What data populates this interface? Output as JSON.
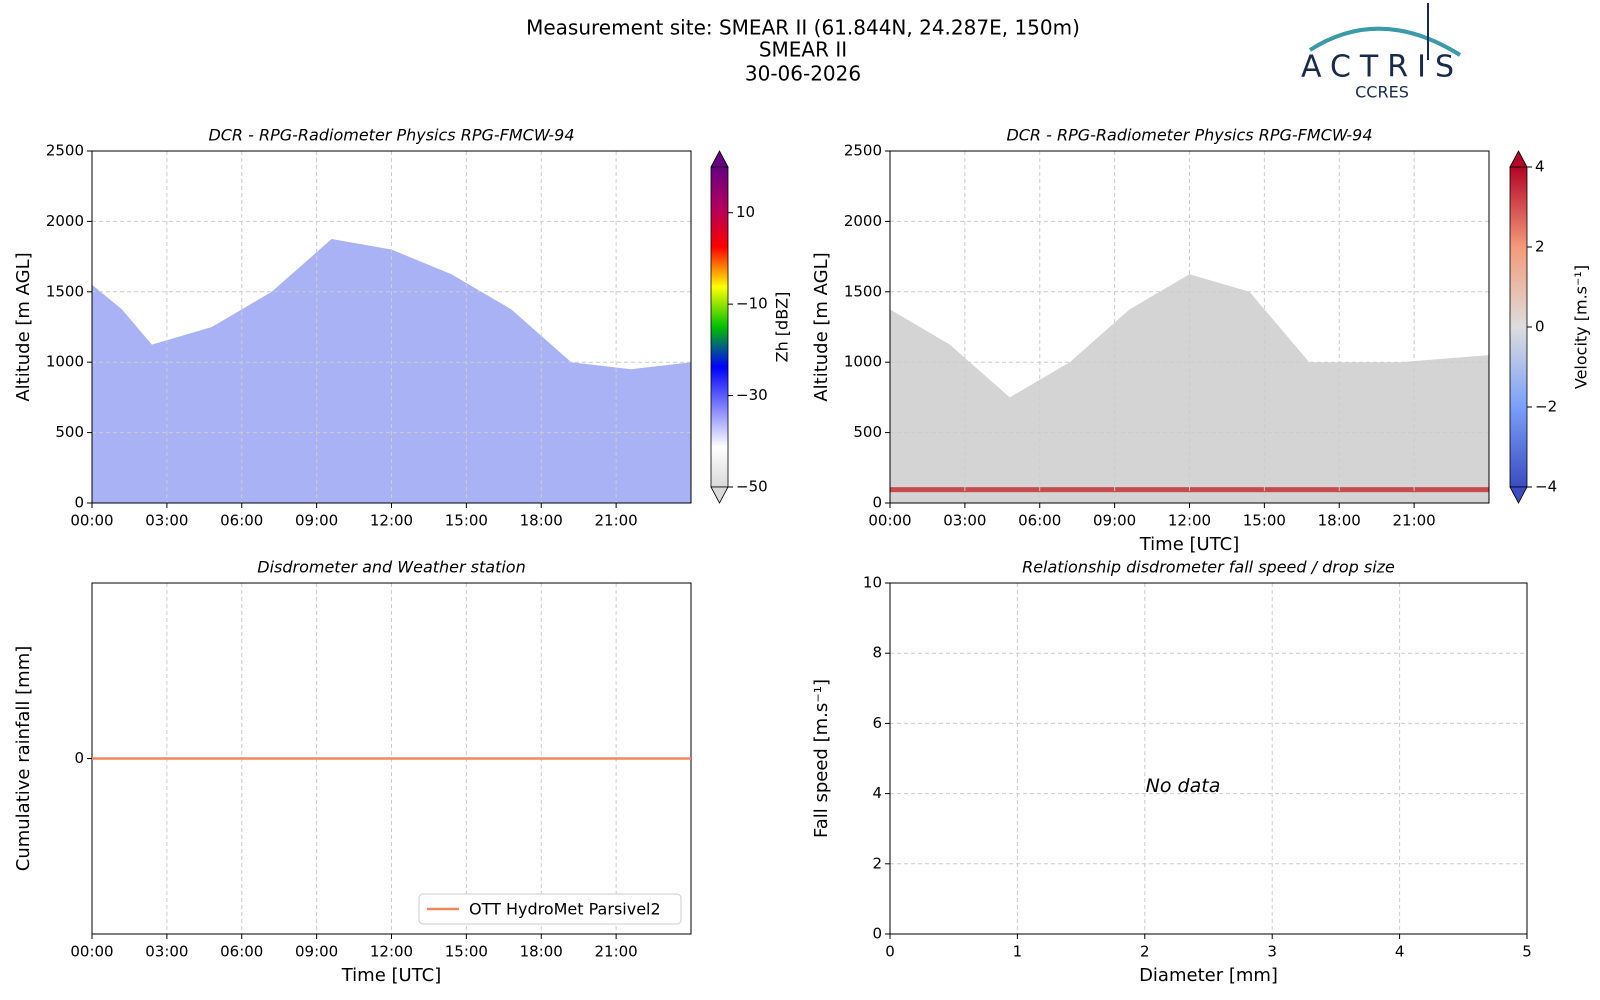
{
  "header": {
    "title_lines": [
      "Measurement site: SMEAR II (61.844N, 24.287E, 150m)",
      "SMEAR II",
      "30-06-2026"
    ],
    "logo": {
      "name": "ACTRIS",
      "subname": "CCRES"
    }
  },
  "chart_data": [
    {
      "type": "heatmap",
      "title": "DCR - RPG-Radiometer Physics RPG-FMCW-94",
      "y_label": "Altitude [m AGL]",
      "xlim": [
        0,
        24
      ],
      "xticks": [
        {
          "value": 0,
          "label": "00:00"
        },
        {
          "value": 3,
          "label": "03:00"
        },
        {
          "value": 6,
          "label": "06:00"
        },
        {
          "value": 9,
          "label": "09:00"
        },
        {
          "value": 12,
          "label": "12:00"
        },
        {
          "value": 15,
          "label": "15:00"
        },
        {
          "value": 18,
          "label": "18:00"
        },
        {
          "value": 21,
          "label": "21:00"
        }
      ],
      "ylim": [
        0,
        2500
      ],
      "yticks": [
        0,
        500,
        1000,
        1500,
        2000,
        2500
      ],
      "grid": true,
      "colorbar": {
        "label": "Zh [dBZ]",
        "lim": [
          -50,
          20
        ],
        "ticks": [
          {
            "value": -50,
            "label": "−50"
          },
          {
            "value": -30,
            "label": "−30"
          },
          {
            "value": -10,
            "label": "−10"
          },
          10
        ],
        "colors": [
          "#d9d9d9",
          "#ffffff",
          "#8080ff",
          "#0000ff",
          "#00c000",
          "#ffff00",
          "#ff0000",
          "#b00060",
          "#660080"
        ]
      }
    },
    {
      "type": "heatmap",
      "title": "DCR - RPG-Radiometer Physics RPG-FMCW-94",
      "y_label": "Altitude [m AGL]",
      "x_label": "Time [UTC]",
      "xlim": [
        0,
        24
      ],
      "xticks": [
        {
          "value": 0,
          "label": "00:00"
        },
        {
          "value": 3,
          "label": "03:00"
        },
        {
          "value": 6,
          "label": "06:00"
        },
        {
          "value": 9,
          "label": "09:00"
        },
        {
          "value": 12,
          "label": "12:00"
        },
        {
          "value": 15,
          "label": "15:00"
        },
        {
          "value": 18,
          "label": "18:00"
        },
        {
          "value": 21,
          "label": "21:00"
        }
      ],
      "ylim": [
        0,
        2500
      ],
      "yticks": [
        0,
        500,
        1000,
        1500,
        2000,
        2500
      ],
      "grid": true,
      "colorbar": {
        "label": "Velocity [m.s⁻¹]",
        "lim": [
          -4,
          4
        ],
        "ticks": [
          {
            "value": -4,
            "label": "−4"
          },
          {
            "value": -2,
            "label": "−2"
          },
          0,
          2,
          4
        ],
        "colors": [
          "#3b4cc0",
          "#7b9ff9",
          "#dddddd",
          "#f49a7b",
          "#b40426"
        ]
      }
    },
    {
      "type": "line",
      "title": "Disdrometer and Weather station",
      "y_label": "Cumulative rainfall [mm]",
      "x_label": "Time [UTC]",
      "xlim": [
        0,
        24
      ],
      "xticks": [
        {
          "value": 0,
          "label": "00:00"
        },
        {
          "value": 3,
          "label": "03:00"
        },
        {
          "value": 6,
          "label": "06:00"
        },
        {
          "value": 9,
          "label": "09:00"
        },
        {
          "value": 12,
          "label": "12:00"
        },
        {
          "value": 15,
          "label": "15:00"
        },
        {
          "value": 18,
          "label": "18:00"
        },
        {
          "value": 21,
          "label": "21:00"
        }
      ],
      "ylim": [
        -1,
        1
      ],
      "yticks": [
        0
      ],
      "grid": true,
      "legend": "lower right",
      "series": [
        {
          "name": "OTT HydroMet Parsivel2",
          "color": "#f08a5d",
          "x": [
            0,
            24
          ],
          "values": [
            0,
            0
          ]
        }
      ]
    },
    {
      "type": "scatter",
      "title": "Relationship disdrometer fall speed / drop size",
      "y_label": "Fall speed [m.s⁻¹]",
      "x_label": "Diameter [mm]",
      "xlim": [
        0,
        5
      ],
      "xticks": [
        0,
        1,
        2,
        3,
        4,
        5
      ],
      "ylim": [
        0,
        10
      ],
      "yticks": [
        0,
        2,
        4,
        6,
        8,
        10
      ],
      "grid": true,
      "annotation": "No data"
    }
  ]
}
